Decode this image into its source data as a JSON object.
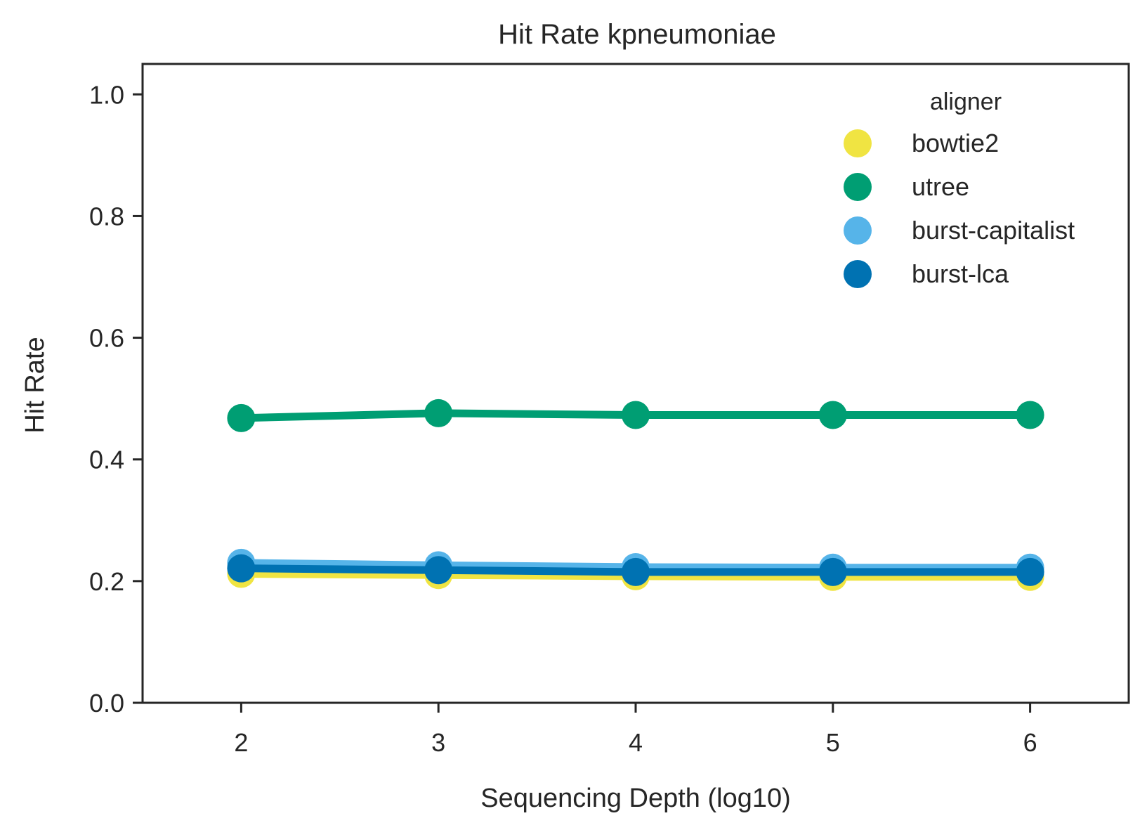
{
  "chart_data": {
    "type": "line",
    "title": "Hit Rate kpneumoniae",
    "xlabel": "Sequencing Depth (log10)",
    "ylabel": "Hit Rate",
    "x": [
      2,
      3,
      4,
      5,
      6
    ],
    "x_ticks": [
      "2",
      "3",
      "4",
      "5",
      "6"
    ],
    "xlim": [
      1.5,
      6.5
    ],
    "ylim": [
      0.0,
      1.05
    ],
    "y_ticks": [
      "0.0",
      "0.2",
      "0.4",
      "0.6",
      "0.8",
      "1.0"
    ],
    "grid": false,
    "legend": {
      "title": "aligner",
      "placement": "top-right"
    },
    "series": [
      {
        "name": "bowtie2",
        "color": "#F0E442",
        "values": [
          0.212,
          0.21,
          0.208,
          0.207,
          0.207
        ]
      },
      {
        "name": "utree",
        "color": "#009E73",
        "values": [
          0.468,
          0.476,
          0.473,
          0.473,
          0.473
        ]
      },
      {
        "name": "burst-capitalist",
        "color": "#56B4E9",
        "values": [
          0.23,
          0.226,
          0.223,
          0.222,
          0.222
        ]
      },
      {
        "name": "burst-lca",
        "color": "#0072B2",
        "values": [
          0.221,
          0.218,
          0.215,
          0.215,
          0.215
        ]
      }
    ]
  }
}
